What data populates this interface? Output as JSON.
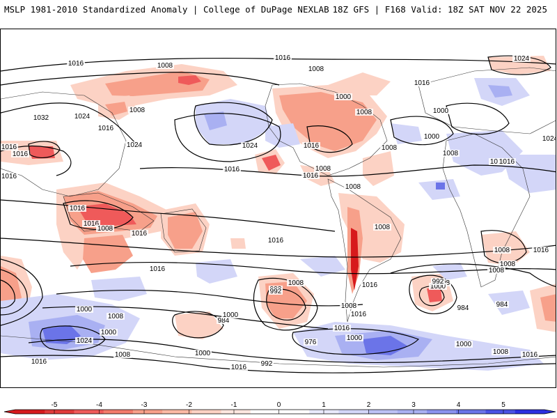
{
  "header": {
    "left_title": "MSLP 1981-2010 Standardized Anomaly | College of DuPage NEXLAB",
    "right_title": "18Z GFS | F168 Valid: 18Z SAT NOV 22 2025"
  },
  "colors": {
    "neg_strong": "#d7191c",
    "neg_mid": "#ef5a5a",
    "neg_light": "#f7a08a",
    "neg_faint": "#fcd2c4",
    "pos_faint": "#d3d6f8",
    "pos_light": "#a9b0f2",
    "pos_mid": "#6b74e8",
    "pos_strong": "#2c2fe0",
    "contour": "#000000"
  },
  "map": {
    "isobar_labels": [
      "1016",
      "1008",
      "1016",
      "1008",
      "1000",
      "1016",
      "1008",
      "1000",
      "1024",
      "1032",
      "1024",
      "1016",
      "1008",
      "1016",
      "1024",
      "1016",
      "1024",
      "1016",
      "1008",
      "1000",
      "1008",
      "1016",
      "1024",
      "1016",
      "1016",
      "1008",
      "1016",
      "1008",
      "1016",
      "1016",
      "1008",
      "1008",
      "1016",
      "1008",
      "1008",
      "1016",
      "1016",
      "1016",
      "1008",
      "1008",
      "1016",
      "1008",
      "1016",
      "1016",
      "992",
      "1008",
      "992",
      "1000",
      "984",
      "1008",
      "1000",
      "984",
      "1000",
      "976",
      "1000",
      "1024",
      "1000",
      "1016",
      "1008",
      "992",
      "984",
      "1000",
      "1008",
      "1016",
      "1016",
      "1000",
      "992",
      "1016"
    ]
  },
  "legend": {
    "tick_labels": [
      "-5",
      "-4",
      "-3",
      "-2",
      "-1",
      "0",
      "1",
      "2",
      "3",
      "4",
      "5"
    ]
  }
}
